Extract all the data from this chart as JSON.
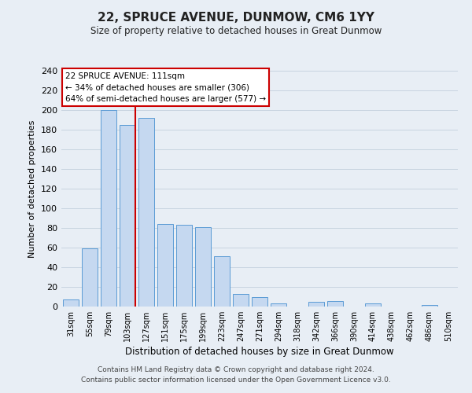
{
  "title": "22, SPRUCE AVENUE, DUNMOW, CM6 1YY",
  "subtitle": "Size of property relative to detached houses in Great Dunmow",
  "xlabel": "Distribution of detached houses by size in Great Dunmow",
  "ylabel": "Number of detached properties",
  "bar_labels": [
    "31sqm",
    "55sqm",
    "79sqm",
    "103sqm",
    "127sqm",
    "151sqm",
    "175sqm",
    "199sqm",
    "223sqm",
    "247sqm",
    "271sqm",
    "294sqm",
    "318sqm",
    "342sqm",
    "366sqm",
    "390sqm",
    "414sqm",
    "438sqm",
    "462sqm",
    "486sqm",
    "510sqm"
  ],
  "bar_values": [
    7,
    59,
    200,
    185,
    192,
    84,
    83,
    81,
    51,
    13,
    10,
    3,
    0,
    5,
    6,
    0,
    3,
    0,
    0,
    2,
    0
  ],
  "bar_color": "#c5d8f0",
  "bar_edge_color": "#5b9bd5",
  "ylim": [
    0,
    240
  ],
  "yticks": [
    0,
    20,
    40,
    60,
    80,
    100,
    120,
    140,
    160,
    180,
    200,
    220,
    240
  ],
  "property_label": "22 SPRUCE AVENUE: 111sqm",
  "annotation_line1": "← 34% of detached houses are smaller (306)",
  "annotation_line2": "64% of semi-detached houses are larger (577) →",
  "vline_color": "#cc0000",
  "annotation_box_color": "#cc0000",
  "background_color": "#e8eef5",
  "footer_line1": "Contains HM Land Registry data © Crown copyright and database right 2024.",
  "footer_line2": "Contains public sector information licensed under the Open Government Licence v3.0."
}
